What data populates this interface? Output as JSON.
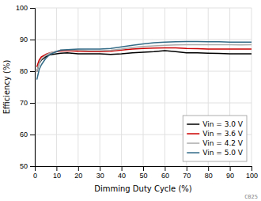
{
  "chart_data": {
    "type": "line",
    "xlabel": "Dimming Duty Cycle (%)",
    "ylabel": "Efficiency (%)",
    "x": [
      1,
      2,
      3,
      5,
      7,
      10,
      12,
      15,
      20,
      25,
      30,
      35,
      40,
      45,
      50,
      55,
      60,
      65,
      70,
      75,
      80,
      85,
      90,
      95,
      100
    ],
    "series": [
      {
        "name": "Vin = 3.0 V",
        "color": "#000000",
        "values": [
          80.0,
          82.5,
          83.5,
          84.5,
          85.2,
          85.5,
          85.7,
          85.8,
          85.5,
          85.5,
          85.5,
          85.3,
          85.5,
          85.8,
          86.0,
          86.2,
          86.5,
          86.2,
          85.8,
          85.8,
          85.7,
          85.6,
          85.5,
          85.5,
          85.5
        ]
      },
      {
        "name": "Vin = 3.6 V",
        "color": "#cc0000",
        "values": [
          81.5,
          83.5,
          84.5,
          85.3,
          85.8,
          86.2,
          86.4,
          86.5,
          86.3,
          86.2,
          86.2,
          86.3,
          86.7,
          87.0,
          87.2,
          87.3,
          87.4,
          87.4,
          87.2,
          87.1,
          87.0,
          87.0,
          87.0,
          87.0,
          87.0
        ]
      },
      {
        "name": "Vin = 4.2 V",
        "color": "#aaaaaa",
        "values": [
          80.0,
          82.5,
          83.8,
          85.0,
          85.8,
          86.3,
          86.6,
          86.7,
          86.7,
          86.5,
          86.5,
          86.6,
          87.0,
          87.5,
          87.8,
          88.0,
          88.2,
          88.3,
          88.4,
          88.4,
          88.4,
          88.4,
          88.4,
          88.3,
          88.4
        ]
      },
      {
        "name": "Vin = 5.0 V",
        "color": "#336b87",
        "values": [
          77.5,
          80.5,
          82.0,
          84.0,
          85.3,
          86.2,
          86.7,
          86.8,
          87.0,
          87.0,
          87.0,
          87.2,
          87.7,
          88.2,
          88.6,
          89.0,
          89.2,
          89.3,
          89.4,
          89.4,
          89.3,
          89.3,
          89.2,
          89.2,
          89.2
        ]
      }
    ],
    "xlim": [
      0,
      100
    ],
    "ylim": [
      50,
      100
    ],
    "xticks": [
      0,
      10,
      20,
      30,
      40,
      50,
      60,
      70,
      80,
      90,
      100
    ],
    "yticks": [
      50,
      60,
      70,
      80,
      90,
      100
    ],
    "grid": true,
    "legend": "lower right",
    "annotations": [
      "C025"
    ]
  }
}
